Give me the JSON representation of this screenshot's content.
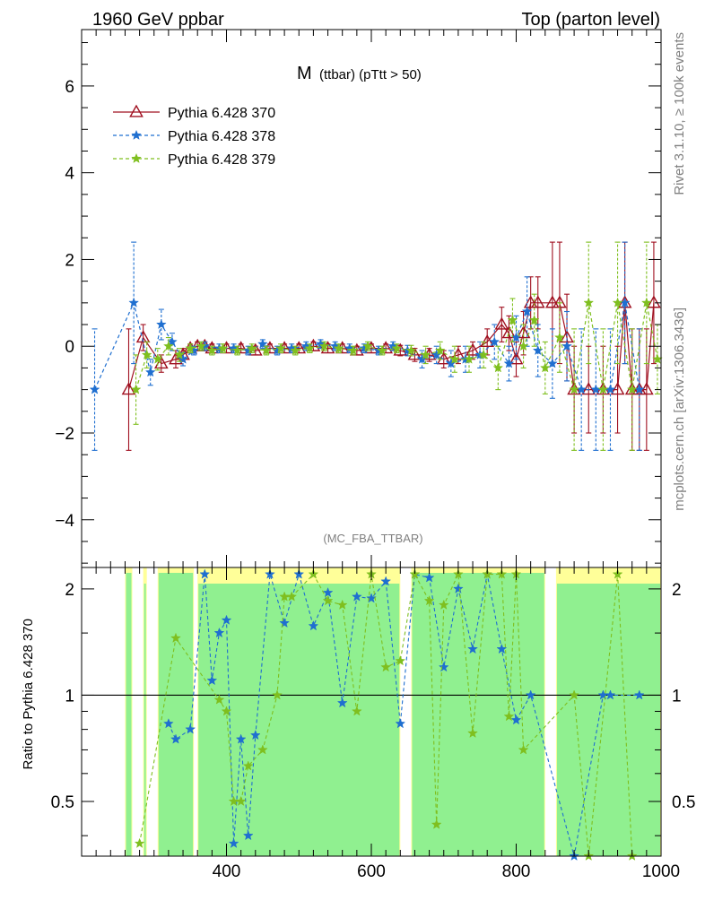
{
  "header": {
    "left": "1960 GeV ppbar",
    "right": "Top (parton level)"
  },
  "side_labels": {
    "rivet": "Rivet 3.1.10, ≥ 100k events",
    "mcplots": "mcplots.cern.ch [arXiv:1306.3436]"
  },
  "watermark": "(MC_FBA_TTBAR)",
  "chart_data": [
    {
      "type": "line",
      "title_main": "M",
      "title_sub": "(ttbar) (pTtt > 50)",
      "xlim": [
        200,
        1000
      ],
      "ylim": [
        -5.1,
        7.3
      ],
      "yticks": [
        -4,
        -2,
        0,
        2,
        4,
        6
      ],
      "legend_position": "top-left",
      "series": [
        {
          "name": "Pythia 6.428 370",
          "color": "#a01020",
          "marker": "triangle",
          "linestyle": "solid",
          "x": [
            265,
            285,
            310,
            330,
            340,
            350,
            360,
            370,
            380,
            400,
            420,
            440,
            460,
            480,
            500,
            520,
            540,
            560,
            580,
            600,
            620,
            640,
            660,
            680,
            700,
            720,
            740,
            760,
            780,
            790,
            800,
            810,
            820,
            830,
            850,
            860,
            870,
            880,
            900,
            920,
            940,
            950,
            960,
            970,
            980,
            990
          ],
          "y": [
            -1.0,
            0.2,
            -0.4,
            -0.3,
            -0.2,
            -0.05,
            0.0,
            0.0,
            -0.05,
            -0.05,
            -0.05,
            -0.1,
            -0.05,
            -0.05,
            -0.05,
            0.0,
            -0.05,
            -0.05,
            -0.1,
            -0.05,
            -0.05,
            -0.1,
            -0.2,
            -0.2,
            -0.3,
            -0.2,
            -0.1,
            0.1,
            0.5,
            0.3,
            -0.3,
            0.3,
            1.0,
            1.0,
            1.0,
            1.0,
            0.2,
            -1.0,
            -1.0,
            -1.0,
            -1.0,
            1.0,
            -1.0,
            -1.0,
            -1.0,
            1.0
          ],
          "yerr": [
            1.4,
            0.3,
            0.2,
            0.2,
            0.15,
            0.1,
            0.1,
            0.1,
            0.1,
            0.1,
            0.1,
            0.1,
            0.1,
            0.1,
            0.1,
            0.1,
            0.1,
            0.1,
            0.1,
            0.1,
            0.1,
            0.12,
            0.15,
            0.15,
            0.2,
            0.2,
            0.2,
            0.3,
            0.4,
            0.4,
            0.4,
            0.5,
            0.6,
            0.6,
            1.4,
            1.4,
            1.0,
            1.0,
            1.0,
            1.0,
            1.0,
            1.4,
            1.4,
            1.4,
            1.4,
            1.4
          ]
        },
        {
          "name": "Pythia 6.428 378",
          "color": "#1f6fd0",
          "marker": "star",
          "linestyle": "dashed",
          "x": [
            218,
            272,
            295,
            310,
            325,
            340,
            355,
            370,
            390,
            410,
            430,
            450,
            470,
            490,
            510,
            530,
            550,
            570,
            590,
            610,
            630,
            650,
            670,
            690,
            710,
            730,
            750,
            770,
            790,
            800,
            815,
            830,
            850,
            870,
            890,
            910,
            930,
            950,
            970
          ],
          "y": [
            -1.0,
            1.0,
            -0.6,
            0.5,
            0.1,
            -0.3,
            -0.1,
            0.0,
            -0.05,
            -0.05,
            -0.1,
            0.05,
            -0.1,
            -0.05,
            0.0,
            0.05,
            0.0,
            -0.05,
            -0.05,
            -0.1,
            0.0,
            -0.1,
            -0.3,
            -0.2,
            -0.4,
            -0.3,
            -0.2,
            0.1,
            -0.4,
            0.2,
            0.8,
            -0.1,
            -0.4,
            0.0,
            -1.0,
            -1.0,
            -1.0,
            1.0,
            -1.0
          ],
          "yerr": [
            1.4,
            1.4,
            0.3,
            0.35,
            0.2,
            0.15,
            0.1,
            0.1,
            0.1,
            0.1,
            0.1,
            0.1,
            0.1,
            0.1,
            0.1,
            0.1,
            0.1,
            0.1,
            0.1,
            0.1,
            0.1,
            0.12,
            0.2,
            0.2,
            0.3,
            0.3,
            0.3,
            0.4,
            0.4,
            0.5,
            0.8,
            0.6,
            0.8,
            0.8,
            1.4,
            1.4,
            1.4,
            1.4,
            1.4
          ]
        },
        {
          "name": "Pythia 6.428 379",
          "color": "#7fbf1f",
          "marker": "star",
          "linestyle": "dashed",
          "x": [
            275,
            290,
            305,
            320,
            335,
            350,
            365,
            380,
            395,
            415,
            435,
            455,
            475,
            495,
            515,
            535,
            555,
            575,
            595,
            615,
            635,
            655,
            675,
            695,
            715,
            735,
            755,
            775,
            795,
            810,
            825,
            840,
            860,
            880,
            900,
            920,
            940,
            960,
            980,
            995
          ],
          "y": [
            -1.0,
            -0.2,
            -0.3,
            0.0,
            -0.2,
            -0.05,
            0.0,
            -0.1,
            -0.05,
            -0.1,
            -0.05,
            -0.1,
            -0.05,
            -0.1,
            -0.05,
            0.0,
            -0.05,
            -0.1,
            0.0,
            -0.1,
            -0.05,
            -0.1,
            -0.2,
            -0.1,
            -0.3,
            -0.3,
            -0.2,
            -0.5,
            0.6,
            0.0,
            0.6,
            -0.5,
            0.2,
            -1.0,
            1.0,
            -1.0,
            1.0,
            -1.0,
            1.0,
            -0.3
          ],
          "yerr": [
            0.8,
            0.3,
            0.25,
            0.2,
            0.15,
            0.1,
            0.1,
            0.1,
            0.1,
            0.1,
            0.1,
            0.1,
            0.1,
            0.1,
            0.1,
            0.1,
            0.1,
            0.1,
            0.1,
            0.1,
            0.1,
            0.12,
            0.2,
            0.2,
            0.3,
            0.3,
            0.3,
            0.5,
            0.5,
            0.5,
            0.6,
            0.6,
            0.8,
            1.4,
            1.4,
            1.4,
            1.4,
            1.4,
            1.4,
            0.8
          ]
        }
      ]
    },
    {
      "type": "line",
      "ylabel": "Ratio to Pythia 6.428 370",
      "xlim": [
        200,
        1000
      ],
      "ylim": [
        0.35,
        2.3
      ],
      "log_y": true,
      "yticks": [
        0.5,
        1,
        2
      ],
      "xticks": [
        400,
        600,
        800,
        1000
      ],
      "reference_line": 1,
      "band_colors": {
        "inner": "#90f090",
        "outer": "#ffff99"
      },
      "band_ranges": [
        [
          260,
          270
        ],
        [
          285,
          290
        ],
        [
          305,
          355
        ],
        [
          360,
          640
        ],
        [
          655,
          840
        ],
        [
          855,
          1000
        ]
      ],
      "series": [
        {
          "name": "Pythia 6.428 378",
          "color": "#1f6fd0",
          "x": [
            320,
            330,
            350,
            370,
            380,
            390,
            400,
            410,
            420,
            430,
            440,
            460,
            480,
            500,
            520,
            540,
            560,
            580,
            600,
            620,
            640,
            660,
            680,
            700,
            720,
            740,
            760,
            780,
            800,
            820,
            880,
            920,
            930,
            970
          ],
          "y": [
            0.83,
            0.75,
            0.8,
            2.2,
            1.1,
            1.5,
            1.63,
            0.38,
            0.75,
            0.4,
            0.77,
            2.2,
            1.6,
            2.2,
            1.57,
            1.95,
            0.95,
            1.9,
            1.88,
            2.1,
            0.83,
            2.2,
            2.15,
            1.2,
            2.0,
            1.35,
            2.2,
            1.35,
            0.85,
            1.0,
            0.35,
            1.0,
            1.0,
            1.0
          ]
        },
        {
          "name": "Pythia 6.428 379",
          "color": "#7fbf1f",
          "x": [
            280,
            330,
            390,
            400,
            410,
            420,
            430,
            450,
            470,
            480,
            490,
            520,
            540,
            560,
            580,
            600,
            620,
            640,
            660,
            680,
            690,
            700,
            720,
            740,
            760,
            780,
            790,
            800,
            810,
            880,
            900,
            940,
            960
          ],
          "y": [
            0.38,
            1.45,
            0.97,
            0.9,
            0.5,
            0.5,
            0.63,
            0.7,
            1.0,
            1.9,
            1.9,
            2.2,
            1.85,
            1.8,
            0.9,
            2.2,
            1.2,
            1.25,
            2.2,
            1.85,
            0.43,
            1.8,
            2.2,
            0.78,
            2.2,
            2.2,
            0.87,
            2.2,
            0.7,
            1.0,
            0.35,
            2.2,
            0.35
          ]
        }
      ]
    }
  ]
}
